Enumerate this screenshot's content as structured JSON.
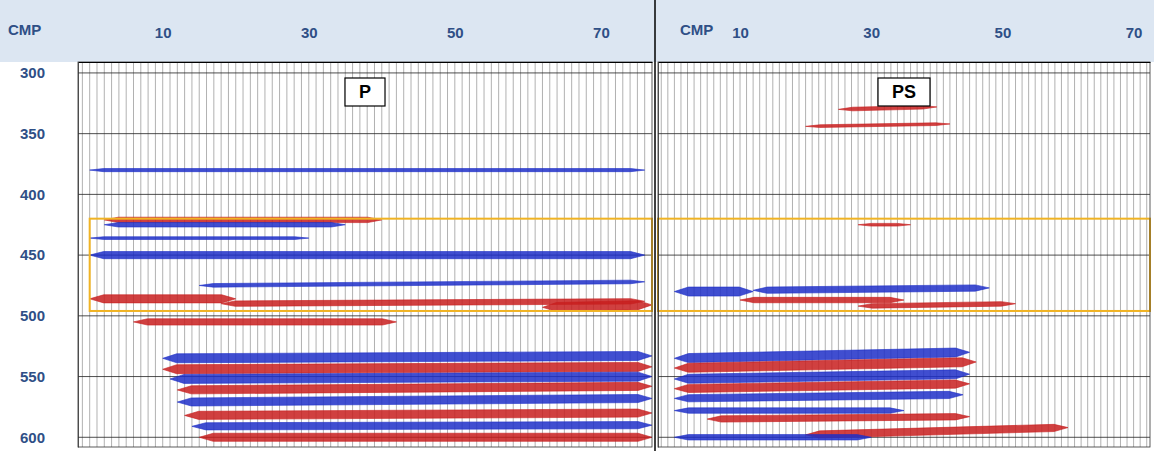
{
  "chart_data": [
    {
      "type": "seismic",
      "title": "P",
      "x_label": "CMP",
      "xlim": [
        -1.6,
        77
      ],
      "ylim": [
        291,
        608
      ],
      "xticks": [
        10,
        30,
        50,
        70
      ],
      "yticks": [
        300,
        350,
        400,
        450,
        500,
        550,
        600
      ],
      "grid": true,
      "tick_labels": true,
      "traces": [
        -1,
        0,
        1,
        2,
        3,
        4,
        5,
        6,
        7,
        8,
        9,
        10,
        11,
        12,
        13,
        14,
        15,
        16,
        17,
        18,
        19,
        20,
        21,
        22,
        23,
        24,
        25,
        26,
        27,
        28,
        29,
        30,
        31,
        32,
        33,
        34,
        35,
        36,
        37,
        38,
        39,
        40,
        41,
        42,
        43,
        44,
        45,
        46,
        47,
        48,
        49,
        50,
        51,
        52,
        53,
        54,
        55,
        56,
        57,
        58,
        59,
        60,
        61,
        62,
        63,
        64,
        65,
        66,
        67,
        68,
        69,
        70,
        71,
        72,
        73,
        74,
        75,
        76
      ],
      "highlight": {
        "cmp": [
          0,
          77
        ],
        "time": [
          420,
          496
        ],
        "color": "#f0b323"
      },
      "events": [
        {
          "cmp": [
            0,
            76
          ],
          "time": [
            380,
            380
          ],
          "color": "#1e2fc8",
          "amplitude": 0.35
        },
        {
          "cmp": [
            2,
            40
          ],
          "time": [
            421,
            421
          ],
          "color": "#c81e1e",
          "amplitude": 0.6
        },
        {
          "cmp": [
            2,
            35
          ],
          "time": [
            425,
            425
          ],
          "color": "#1e2fc8",
          "amplitude": 0.5
        },
        {
          "cmp": [
            0,
            30
          ],
          "time": [
            436,
            436
          ],
          "color": "#1e2fc8",
          "amplitude": 0.3
        },
        {
          "cmp": [
            0,
            76
          ],
          "time": [
            450,
            450
          ],
          "color": "#1e2fc8",
          "amplitude": 0.8
        },
        {
          "cmp": [
            15,
            76
          ],
          "time": [
            475,
            472
          ],
          "color": "#1e2fc8",
          "amplitude": 0.4
        },
        {
          "cmp": [
            0,
            20
          ],
          "time": [
            486,
            486
          ],
          "color": "#c81e1e",
          "amplitude": 0.9
        },
        {
          "cmp": [
            18,
            76
          ],
          "time": [
            490,
            488
          ],
          "color": "#c81e1e",
          "amplitude": 0.6
        },
        {
          "cmp": [
            62,
            77
          ],
          "time": [
            493,
            491
          ],
          "color": "#c81e1e",
          "amplitude": 1.0
        },
        {
          "cmp": [
            6,
            42
          ],
          "time": [
            505,
            505
          ],
          "color": "#c81e1e",
          "amplitude": 0.7
        },
        {
          "cmp": [
            10,
            77
          ],
          "time": [
            535,
            533
          ],
          "color": "#1e2fc8",
          "amplitude": 1.0
        },
        {
          "cmp": [
            10,
            77
          ],
          "time": [
            544,
            542
          ],
          "color": "#c81e1e",
          "amplitude": 1.0
        },
        {
          "cmp": [
            11,
            77
          ],
          "time": [
            552,
            550
          ],
          "color": "#1e2fc8",
          "amplitude": 1.0
        },
        {
          "cmp": [
            12,
            77
          ],
          "time": [
            561,
            558
          ],
          "color": "#c81e1e",
          "amplitude": 0.9
        },
        {
          "cmp": [
            12,
            77
          ],
          "time": [
            571,
            568
          ],
          "color": "#1e2fc8",
          "amplitude": 0.9
        },
        {
          "cmp": [
            13,
            77
          ],
          "time": [
            582,
            580
          ],
          "color": "#c81e1e",
          "amplitude": 0.9
        },
        {
          "cmp": [
            14,
            77
          ],
          "time": [
            591,
            590
          ],
          "color": "#1e2fc8",
          "amplitude": 0.8
        },
        {
          "cmp": [
            15,
            77
          ],
          "time": [
            600,
            600
          ],
          "color": "#c81e1e",
          "amplitude": 0.9
        }
      ]
    },
    {
      "type": "seismic",
      "title": "PS",
      "x_label": "CMP",
      "xlim": [
        -2.5,
        72.5
      ],
      "ylim": [
        291,
        608
      ],
      "xticks": [
        10,
        30,
        50,
        70
      ],
      "yticks": [
        300,
        350,
        400,
        450,
        500,
        550,
        600
      ],
      "grid": true,
      "tick_labels": "x",
      "traces": [
        -2,
        -1,
        0,
        1,
        2,
        3,
        4,
        5,
        6,
        7,
        8,
        9,
        10,
        11,
        12,
        13,
        14,
        15,
        16,
        17,
        18,
        19,
        20,
        21,
        22,
        23,
        24,
        25,
        26,
        27,
        28,
        29,
        30,
        31,
        32,
        33,
        34,
        35,
        36,
        37,
        38,
        39,
        40,
        41,
        42,
        43,
        44,
        45,
        46,
        47,
        48,
        49,
        50,
        51,
        52,
        53,
        54,
        55,
        56,
        57,
        58,
        59,
        60,
        61,
        62,
        63,
        64,
        65,
        66,
        67,
        68,
        69,
        70,
        71,
        72
      ],
      "highlight": {
        "cmp": [
          -2.5,
          72.5
        ],
        "time": [
          420,
          496
        ],
        "color": "#f0b323"
      },
      "events": [
        {
          "cmp": [
            25,
            40
          ],
          "time": [
            330,
            328
          ],
          "color": "#c81e1e",
          "amplitude": 0.4
        },
        {
          "cmp": [
            20,
            42
          ],
          "time": [
            344,
            342
          ],
          "color": "#c81e1e",
          "amplitude": 0.3
        },
        {
          "cmp": [
            28,
            36
          ],
          "time": [
            425,
            425
          ],
          "color": "#c81e1e",
          "amplitude": 0.3
        },
        {
          "cmp": [
            0,
            12
          ],
          "time": [
            480,
            480
          ],
          "color": "#1e2fc8",
          "amplitude": 1.0
        },
        {
          "cmp": [
            12,
            48
          ],
          "time": [
            479,
            477
          ],
          "color": "#1e2fc8",
          "amplitude": 0.7
        },
        {
          "cmp": [
            10,
            35
          ],
          "time": [
            487,
            487
          ],
          "color": "#c81e1e",
          "amplitude": 0.6
        },
        {
          "cmp": [
            28,
            52
          ],
          "time": [
            492,
            490
          ],
          "color": "#c81e1e",
          "amplitude": 0.5
        },
        {
          "cmp": [
            0,
            45
          ],
          "time": [
            535,
            530
          ],
          "color": "#1e2fc8",
          "amplitude": 1.0
        },
        {
          "cmp": [
            0,
            46
          ],
          "time": [
            543,
            538
          ],
          "color": "#c81e1e",
          "amplitude": 1.0
        },
        {
          "cmp": [
            0,
            45
          ],
          "time": [
            552,
            548
          ],
          "color": "#1e2fc8",
          "amplitude": 1.0
        },
        {
          "cmp": [
            0,
            45
          ],
          "time": [
            560,
            556
          ],
          "color": "#c81e1e",
          "amplitude": 0.9
        },
        {
          "cmp": [
            0,
            44
          ],
          "time": [
            568,
            565
          ],
          "color": "#1e2fc8",
          "amplitude": 0.8
        },
        {
          "cmp": [
            0,
            35
          ],
          "time": [
            578,
            578
          ],
          "color": "#1e2fc8",
          "amplitude": 0.6
        },
        {
          "cmp": [
            5,
            45
          ],
          "time": [
            585,
            583
          ],
          "color": "#c81e1e",
          "amplitude": 0.7
        },
        {
          "cmp": [
            20,
            60
          ],
          "time": [
            598,
            592
          ],
          "color": "#c81e1e",
          "amplitude": 0.8
        },
        {
          "cmp": [
            0,
            30
          ],
          "time": [
            600,
            600
          ],
          "color": "#1e2fc8",
          "amplitude": 0.6
        }
      ]
    }
  ]
}
